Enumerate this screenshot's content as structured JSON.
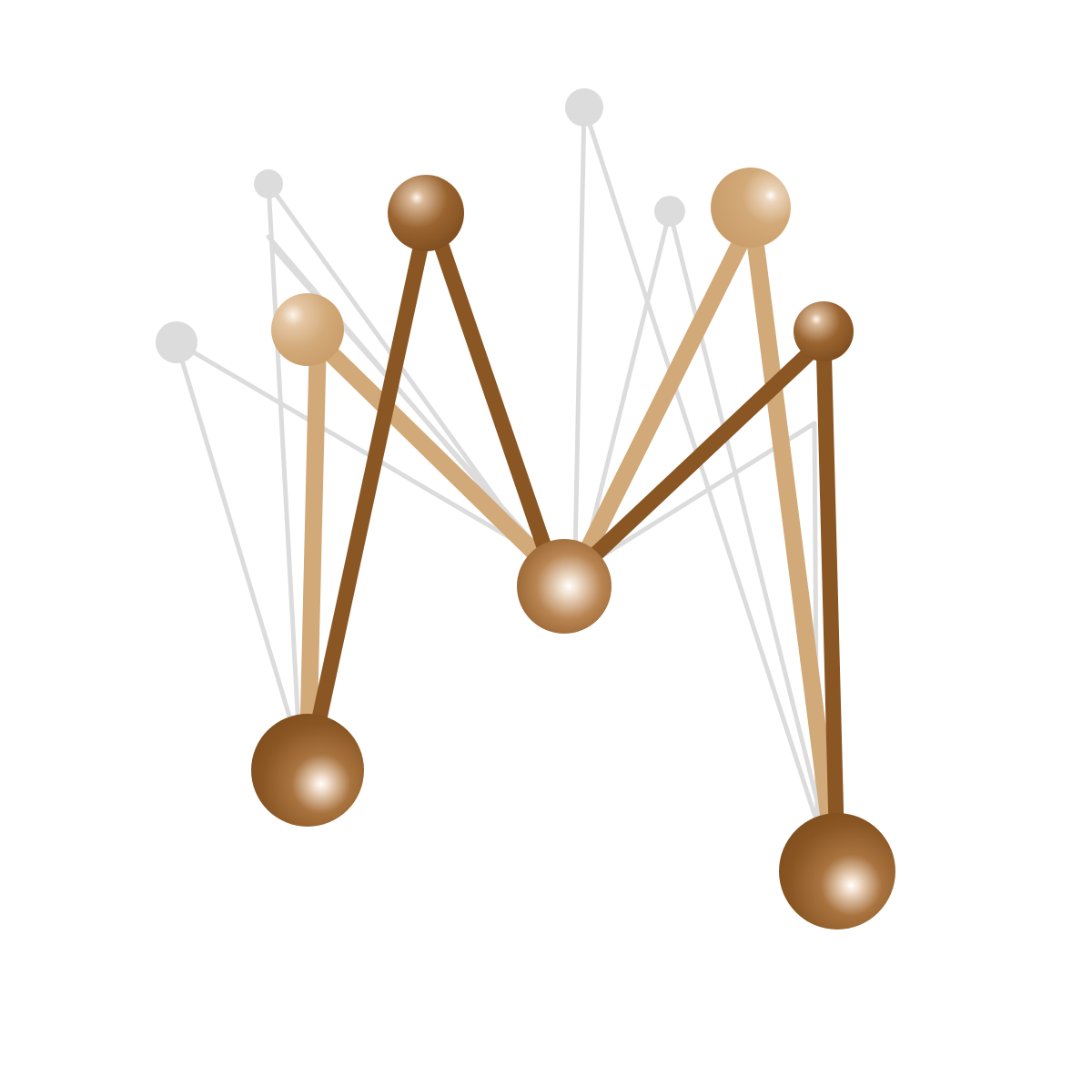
{
  "logo": {
    "description_name": "molecular-m-logo",
    "colors": {
      "background": "#ffffff",
      "dark_brown": "#8a5623",
      "tan": "#d2a978",
      "light_gray": "#dcdcdc",
      "highlight": "#ffffff"
    }
  }
}
